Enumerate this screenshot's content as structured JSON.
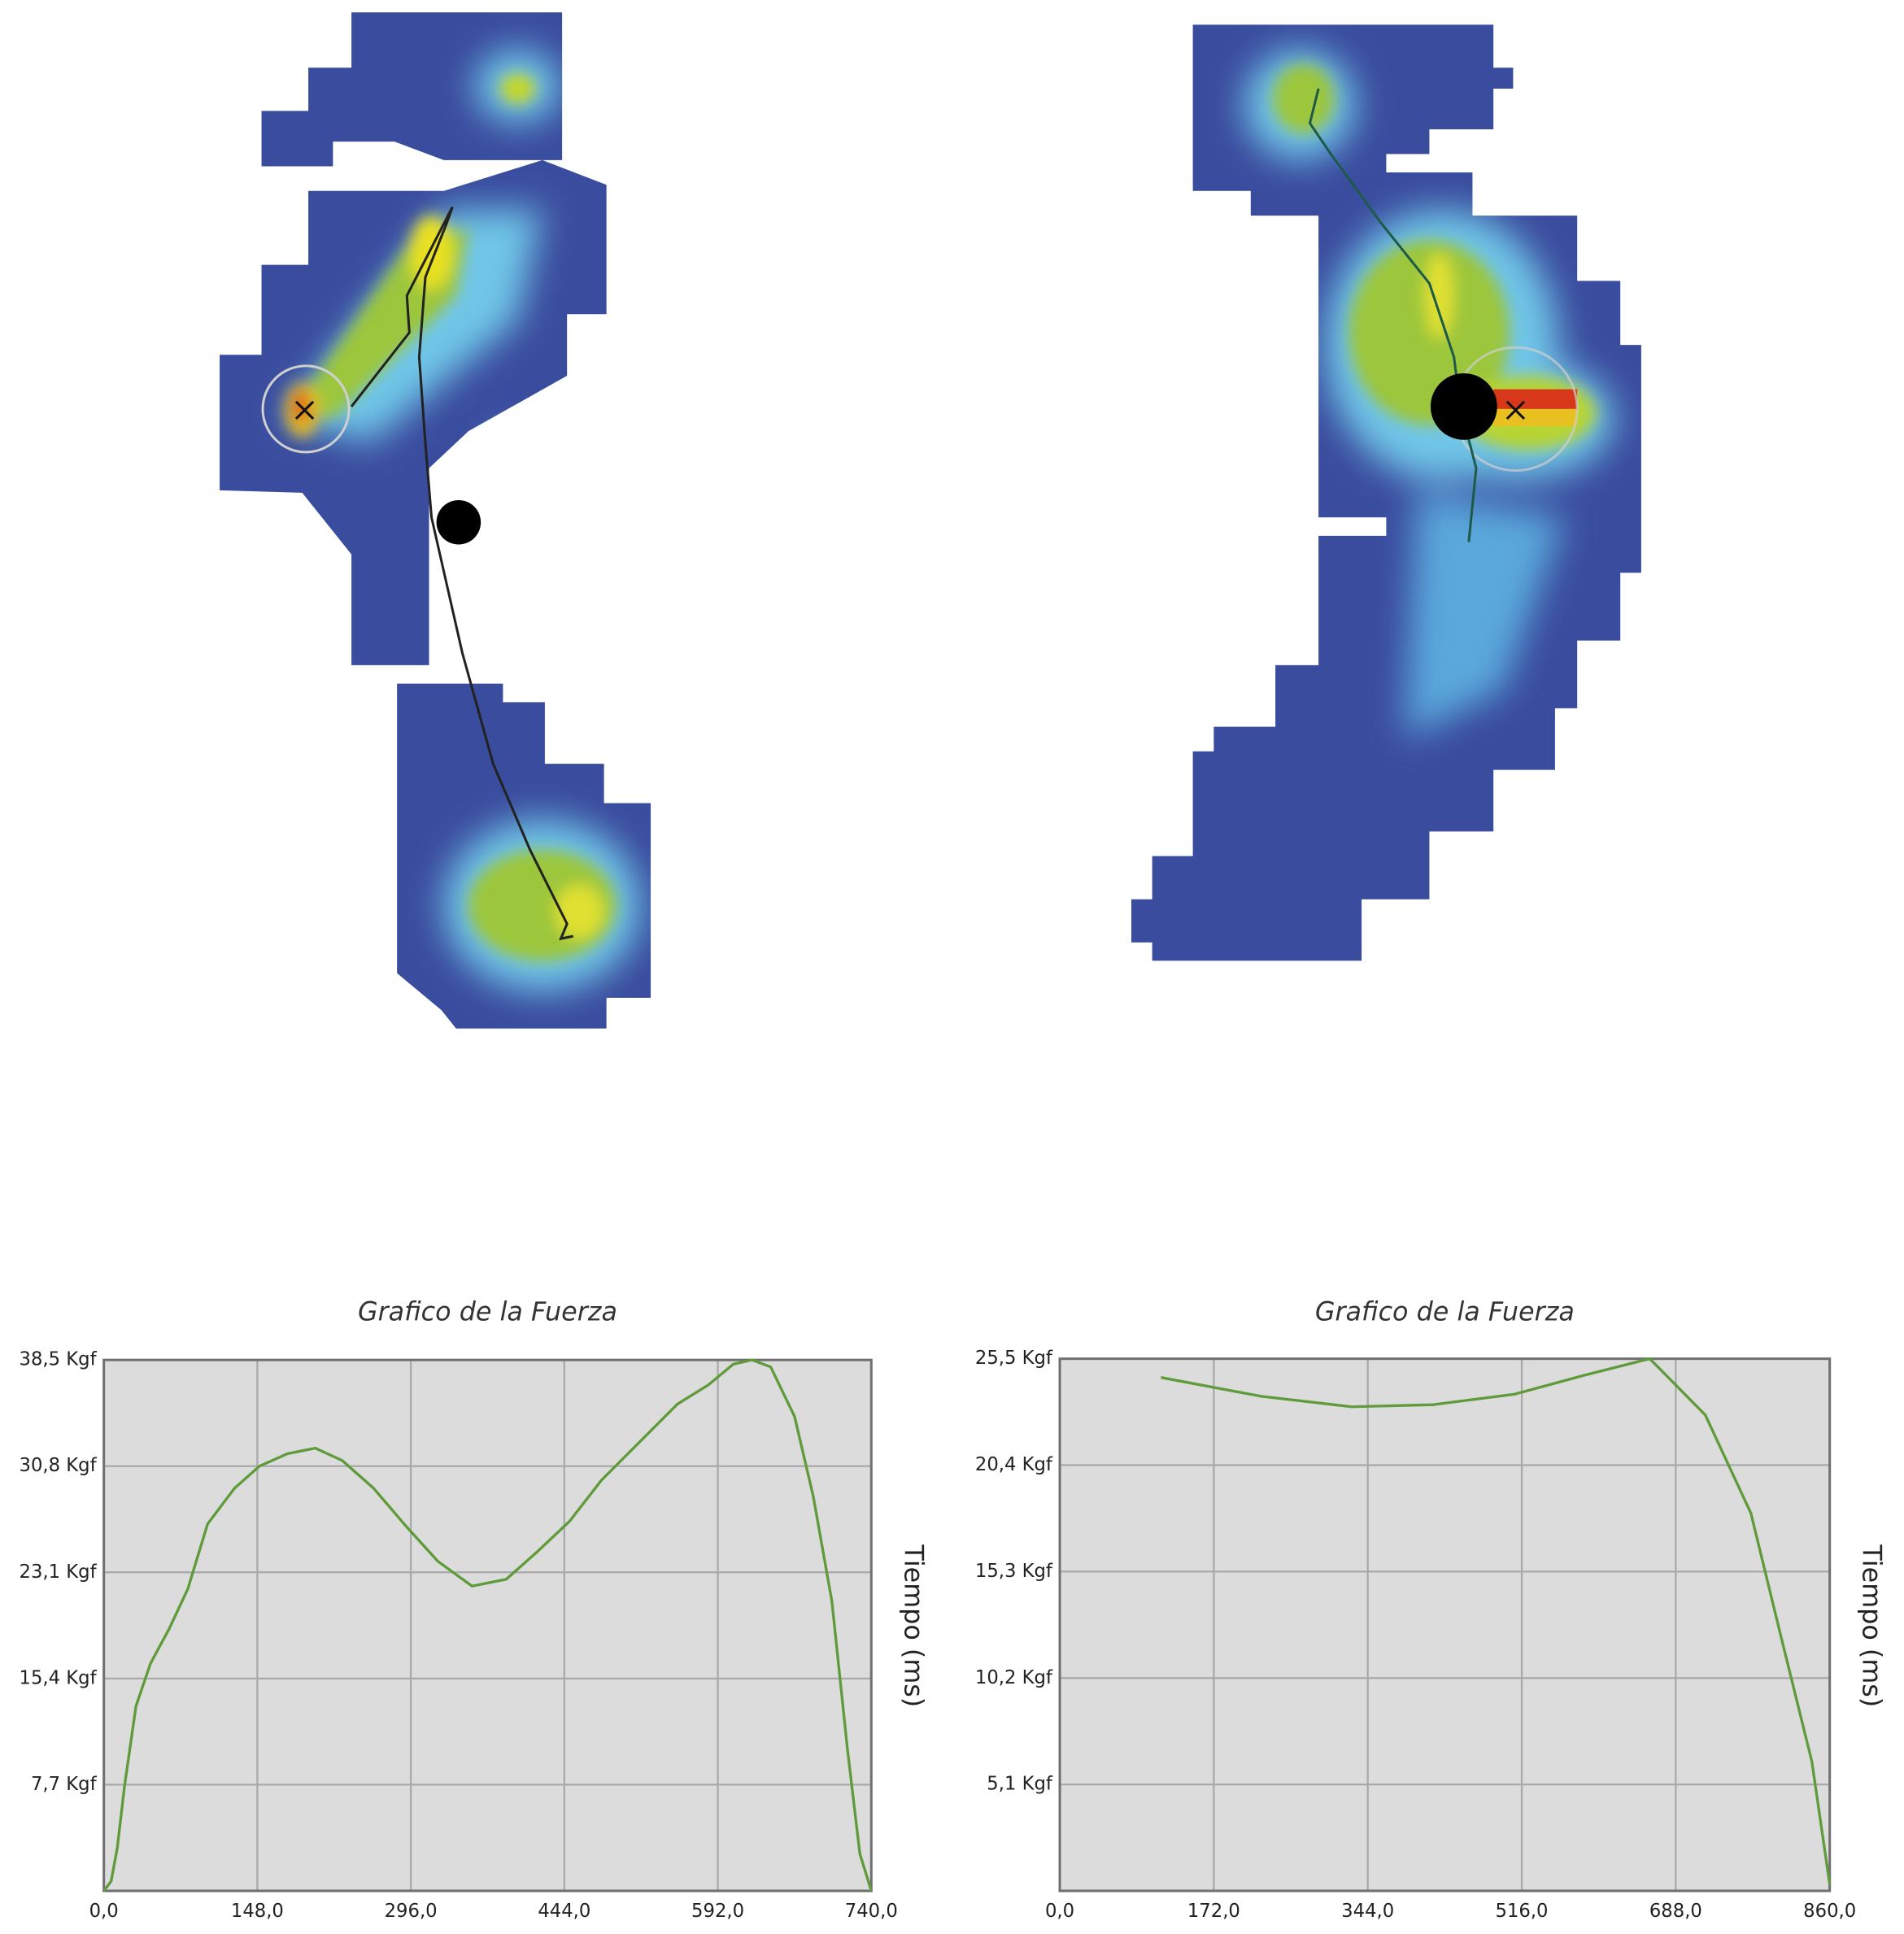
{
  "chart_data": [
    {
      "type": "line",
      "title": "Grafico de la Fuerza",
      "ylabel": "Tiempo (ms)",
      "color": "#5f9b3a",
      "grid": true,
      "x": [
        0,
        7,
        13,
        20,
        31,
        45,
        63,
        81,
        100,
        126,
        150,
        177,
        204,
        230,
        260,
        292,
        322,
        355,
        388,
        418,
        449,
        480,
        512,
        553,
        583,
        607,
        625,
        643,
        666,
        684,
        702,
        717,
        729,
        740
      ],
      "values": [
        0,
        0.7,
        3.1,
        7.6,
        13.4,
        16.5,
        19.0,
        21.9,
        26.6,
        29.2,
        30.8,
        31.7,
        32.1,
        31.2,
        29.2,
        26.4,
        23.9,
        22.1,
        22.6,
        24.6,
        26.8,
        29.8,
        32.2,
        35.3,
        36.7,
        38.2,
        38.5,
        38.0,
        34.4,
        28.6,
        21.0,
        10.3,
        2.7,
        0
      ],
      "xlim": [
        0,
        740
      ],
      "xticks": [
        {
          "value": 0,
          "label": "0,0"
        },
        {
          "value": 148,
          "label": "148,0"
        },
        {
          "value": 296,
          "label": "296,0"
        },
        {
          "value": 444,
          "label": "444,0"
        },
        {
          "value": 592,
          "label": "592,0"
        },
        {
          "value": 740,
          "label": "740,0"
        }
      ],
      "ylim": [
        0,
        38.5
      ],
      "yticks": [
        {
          "value": 7.7,
          "label": "7,7 Kgf"
        },
        {
          "value": 15.4,
          "label": "15,4 Kgf"
        },
        {
          "value": 23.1,
          "label": "23,1 Kgf"
        },
        {
          "value": 30.8,
          "label": "30,8 Kgf"
        },
        {
          "value": 38.5,
          "label": "38,5 Kgf"
        }
      ]
    },
    {
      "type": "line",
      "title": "Grafico de la Fuerza",
      "ylabel": "Tiempo (ms)",
      "color": "#5f9b3a",
      "grid": true,
      "x": [
        113,
        225,
        326,
        417,
        508,
        585,
        659,
        721,
        772,
        806,
        840,
        860
      ],
      "values": [
        24.6,
        23.7,
        23.2,
        23.3,
        23.8,
        24.7,
        25.5,
        22.8,
        18.1,
        12.1,
        6.2,
        0.3
      ],
      "xlim": [
        0,
        860
      ],
      "xticks": [
        {
          "value": 0,
          "label": "0,0"
        },
        {
          "value": 172,
          "label": "172,0"
        },
        {
          "value": 344,
          "label": "344,0"
        },
        {
          "value": 516,
          "label": "516,0"
        },
        {
          "value": 688,
          "label": "688,0"
        },
        {
          "value": 860,
          "label": "860,0"
        }
      ],
      "ylim": [
        0,
        25.5
      ],
      "yticks": [
        {
          "value": 5.1,
          "label": "5,1 Kgf"
        },
        {
          "value": 10.2,
          "label": "10,2 Kgf"
        },
        {
          "value": 15.3,
          "label": "15,3 Kgf"
        },
        {
          "value": 20.4,
          "label": "20,4 Kgf"
        },
        {
          "value": 25.5,
          "label": "25,5 Kgf"
        }
      ]
    }
  ]
}
